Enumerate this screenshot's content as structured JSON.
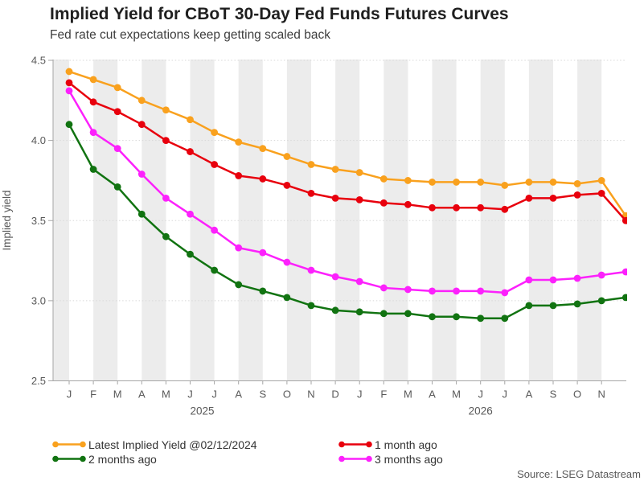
{
  "header": {
    "title": "Implied Yield for CBoT 30-Day Fed Funds Futures Curves",
    "subtitle": "Fed rate cut expectations keep getting scaled back"
  },
  "source_note": "Source: LSEG Datastream",
  "chart_data": {
    "type": "line",
    "title": "Implied Yield for CBoT 30-Day Fed Funds Futures Curves",
    "subtitle": "Fed rate cut expectations keep getting scaled back",
    "ylabel": "Implied yield",
    "ylim": [
      2.5,
      4.5
    ],
    "yticks": [
      4.5,
      4.0,
      3.5,
      3.0,
      2.5
    ],
    "grid": "dotted horizontal gridlines every 0.5; alternating light-gray vertical month stripes",
    "legend_position": "bottom",
    "x_month_labels": [
      "J",
      "F",
      "M",
      "A",
      "M",
      "J",
      "J",
      "A",
      "S",
      "O",
      "N",
      "D",
      "J",
      "F",
      "M",
      "A",
      "M",
      "J",
      "J",
      "A",
      "S",
      "O",
      "N"
    ],
    "year_labels": [
      "2025",
      "2026"
    ],
    "final_point_note": "Each series has a 24th point (Dec 2026) clipped at the right plot edge with no axis label",
    "series": [
      {
        "name": "Latest Implied Yield @02/12/2024",
        "color": "#F9A11E",
        "values": [
          4.43,
          4.38,
          4.33,
          4.25,
          4.19,
          4.13,
          4.05,
          3.99,
          3.95,
          3.9,
          3.85,
          3.82,
          3.8,
          3.76,
          3.75,
          3.74,
          3.74,
          3.74,
          3.72,
          3.74,
          3.74,
          3.73,
          3.75,
          3.53
        ]
      },
      {
        "name": "1 month ago",
        "color": "#E8000D",
        "values": [
          4.36,
          4.24,
          4.18,
          4.1,
          4.0,
          3.93,
          3.85,
          3.78,
          3.76,
          3.72,
          3.67,
          3.64,
          3.63,
          3.61,
          3.6,
          3.58,
          3.58,
          3.58,
          3.57,
          3.64,
          3.64,
          3.66,
          3.67,
          3.5
        ]
      },
      {
        "name": "2 months ago",
        "color": "#117311",
        "values": [
          4.1,
          3.82,
          3.71,
          3.54,
          3.4,
          3.29,
          3.19,
          3.1,
          3.06,
          3.02,
          2.97,
          2.94,
          2.93,
          2.92,
          2.92,
          2.9,
          2.9,
          2.89,
          2.89,
          2.97,
          2.97,
          2.98,
          3.0,
          3.02
        ]
      },
      {
        "name": "3 months ago",
        "color": "#FC21FC",
        "values": [
          4.31,
          4.05,
          3.95,
          3.79,
          3.64,
          3.54,
          3.44,
          3.33,
          3.3,
          3.24,
          3.19,
          3.15,
          3.12,
          3.08,
          3.07,
          3.06,
          3.06,
          3.06,
          3.05,
          3.13,
          3.13,
          3.14,
          3.16,
          3.18
        ]
      }
    ],
    "style": {
      "stripe_color": "#ECECEC",
      "gridline_color": "#D8D8D8",
      "axis_color": "#A6A6A6",
      "tick_label_color": "#595959"
    }
  }
}
